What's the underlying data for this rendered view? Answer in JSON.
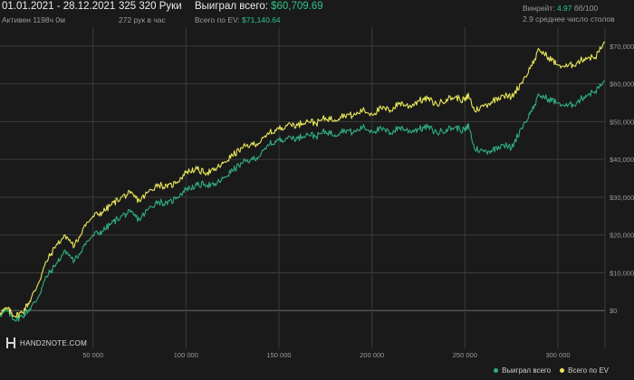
{
  "header": {
    "date_range": "01.01.2021 - 28.12.2021",
    "active": "Активен 1198ч 0м",
    "hands": "325 320 Руки",
    "hands_per_hour": "272 рук в час",
    "won_label": "Выиграл всего:",
    "won_value": "$60,709.69",
    "ev_label": "Всего по EV:",
    "ev_value": "$71,140.64",
    "winrate_label": "Винрейт:",
    "winrate_value": "4.97",
    "winrate_unit": "бб/100",
    "avg_tables": "2.9 среднее число столов"
  },
  "logo": {
    "text": "HAND2NOTE.COM"
  },
  "colors": {
    "won": "#2fae7e",
    "ev": "#e9e65a",
    "grid": "#3b3b3b",
    "background": "#1a1a1a"
  },
  "chart_data": {
    "type": "line",
    "xlim": [
      0,
      325320
    ],
    "ylim": [
      -10000,
      75000
    ],
    "x_ticks": [
      50000,
      100000,
      150000,
      200000,
      250000,
      300000
    ],
    "x_tick_labels": [
      "50 000",
      "100 000",
      "150 000",
      "200 000",
      "250 000",
      "300 000"
    ],
    "y_ticks": [
      0,
      10000,
      20000,
      30000,
      40000,
      50000,
      60000,
      70000
    ],
    "y_tick_labels": [
      "$0",
      "$10,000",
      "$20,000",
      "$30,000",
      "$40,000",
      "$50,000",
      "$60,000",
      "$70,000"
    ],
    "legend_position": "bottom-right",
    "series": [
      {
        "name": "Выиграл всего",
        "x": [
          0,
          4000,
          8000,
          12000,
          16000,
          20000,
          25000,
          30000,
          35000,
          40000,
          45000,
          50000,
          55000,
          60000,
          65000,
          70000,
          75000,
          80000,
          85000,
          90000,
          95000,
          100000,
          105000,
          110000,
          115000,
          120000,
          125000,
          130000,
          135000,
          140000,
          145000,
          150000,
          155000,
          160000,
          165000,
          170000,
          175000,
          180000,
          185000,
          190000,
          195000,
          200000,
          205000,
          210000,
          215000,
          220000,
          225000,
          230000,
          235000,
          240000,
          245000,
          250000,
          252000,
          255000,
          260000,
          265000,
          270000,
          275000,
          280000,
          285000,
          290000,
          295000,
          300000,
          305000,
          310000,
          315000,
          320000,
          325320
        ],
        "y": [
          -1000,
          -200,
          -2500,
          -1500,
          500,
          3000,
          9000,
          12000,
          16000,
          13000,
          17000,
          20000,
          21000,
          23000,
          25000,
          26000,
          24000,
          27000,
          29000,
          28000,
          30000,
          32000,
          33000,
          33500,
          33000,
          35000,
          37000,
          39000,
          40000,
          41000,
          44000,
          45000,
          46000,
          45500,
          47000,
          46000,
          47500,
          46500,
          48000,
          47000,
          48500,
          47500,
          48000,
          47000,
          48500,
          47500,
          48000,
          48500,
          47000,
          48000,
          48500,
          47500,
          49000,
          43000,
          42000,
          42500,
          44000,
          43000,
          48000,
          52000,
          57000,
          56000,
          55000,
          54000,
          55000,
          57000,
          58000,
          60700
        ]
      },
      {
        "name": "Всего по EV",
        "x": [
          0,
          4000,
          8000,
          12000,
          16000,
          20000,
          25000,
          30000,
          35000,
          40000,
          45000,
          50000,
          55000,
          60000,
          65000,
          70000,
          75000,
          80000,
          85000,
          90000,
          95000,
          100000,
          105000,
          110000,
          115000,
          120000,
          125000,
          130000,
          135000,
          140000,
          145000,
          150000,
          155000,
          160000,
          165000,
          170000,
          175000,
          180000,
          185000,
          190000,
          195000,
          200000,
          205000,
          210000,
          215000,
          220000,
          225000,
          230000,
          235000,
          240000,
          245000,
          250000,
          252000,
          255000,
          260000,
          265000,
          270000,
          275000,
          280000,
          285000,
          290000,
          295000,
          300000,
          305000,
          310000,
          315000,
          320000,
          325320
        ],
        "y": [
          -500,
          400,
          -1500,
          -500,
          2500,
          6500,
          13000,
          17000,
          20000,
          17000,
          22000,
          25000,
          26000,
          28000,
          30000,
          31000,
          29000,
          31500,
          33500,
          32500,
          34000,
          36500,
          37500,
          36500,
          37000,
          39000,
          41000,
          43000,
          44000,
          44500,
          47000,
          48000,
          49500,
          49000,
          50500,
          49500,
          51000,
          50500,
          52000,
          51500,
          53000,
          52000,
          53500,
          53000,
          55000,
          54000,
          55500,
          56000,
          54500,
          56000,
          56500,
          55500,
          57000,
          53000,
          54000,
          55500,
          57000,
          56500,
          60000,
          64000,
          69000,
          67000,
          65000,
          64500,
          65500,
          67000,
          67000,
          71100
        ]
      }
    ]
  }
}
